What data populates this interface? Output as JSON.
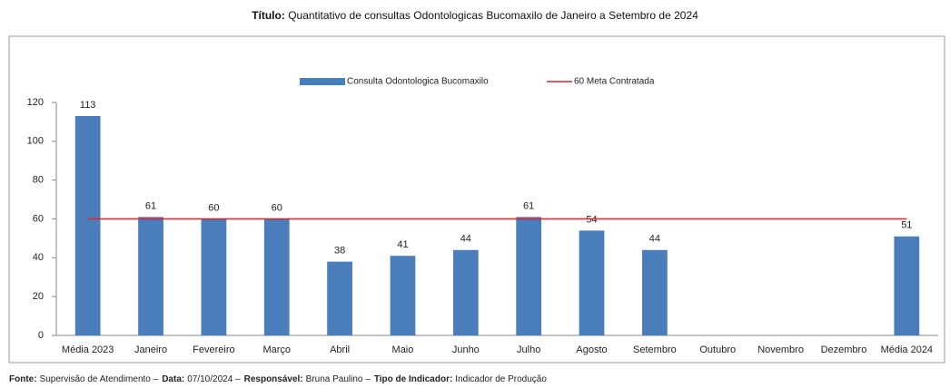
{
  "chart_data": {
    "type": "bar",
    "title_label": "Título:",
    "title": "Quantitativo de consultas Odontologicas Bucomaxilo de Janeiro a Setembro de 2024",
    "categories": [
      "Média 2023",
      "Janeiro",
      "Fevereiro",
      "Março",
      "Abril",
      "Maio",
      "Junho",
      "Julho",
      "Agosto",
      "Setembro",
      "Outubro",
      "Novembro",
      "Dezembro",
      "Média 2024"
    ],
    "series": [
      {
        "name": "Consulta Odontologica Bucomaxilo",
        "type": "bar",
        "color": "#4a7ebb",
        "values": [
          113,
          61,
          60,
          60,
          38,
          41,
          44,
          61,
          54,
          44,
          null,
          null,
          null,
          51
        ]
      },
      {
        "name": "60 Meta Contratada",
        "type": "line",
        "color": "#d9272e",
        "values": [
          60,
          60,
          60,
          60,
          60,
          60,
          60,
          60,
          60,
          60,
          60,
          60,
          60,
          60
        ]
      }
    ],
    "ylim": [
      0,
      120
    ],
    "yticks": [
      0,
      20,
      40,
      60,
      80,
      100,
      120
    ],
    "grid": false,
    "legend": "top",
    "footer": [
      {
        "label": "Fonte:",
        "text": "Supervisão de Atendimento –"
      },
      {
        "label": "Data:",
        "text": "07/10/2024 –"
      },
      {
        "label": "Responsável:",
        "text": "Bruna Paulino –"
      },
      {
        "label": "Tipo de Indicador:",
        "text": "Indicador de Produção"
      }
    ]
  }
}
